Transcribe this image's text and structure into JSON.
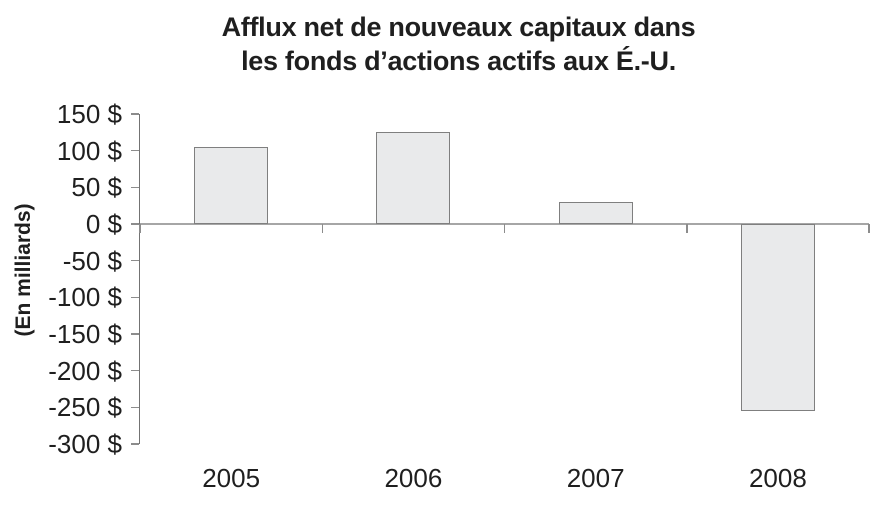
{
  "chart_data": {
    "type": "bar",
    "title": "Afflux net de nouveaux capitaux dans les fonds d’actions actifs aux É.-U.",
    "title_lines": [
      "Afflux net de nouveaux capitaux dans",
      "les fonds d’actions actifs aux É.-U."
    ],
    "ylabel": "(En milliards)",
    "xlabel": "",
    "categories": [
      "2005",
      "2006",
      "2007",
      "2008"
    ],
    "values": [
      105,
      125,
      30,
      -255
    ],
    "unit": "$ billions",
    "ylim": [
      -300,
      150
    ],
    "ytick_step": 50,
    "yticks": [
      {
        "value": 150,
        "label": "150 $"
      },
      {
        "value": 100,
        "label": "100 $"
      },
      {
        "value": 50,
        "label": "50 $"
      },
      {
        "value": 0,
        "label": "0 $"
      },
      {
        "value": -50,
        "label": "-50 $"
      },
      {
        "value": -100,
        "label": "-100 $"
      },
      {
        "value": -150,
        "label": "-150 $"
      },
      {
        "value": -200,
        "label": "-200 $"
      },
      {
        "value": -250,
        "label": "-250 $"
      },
      {
        "value": -300,
        "label": "-300 $"
      }
    ],
    "legend": null,
    "grid": "none",
    "colors": {
      "background": "#ffffff",
      "bar_fill": "#e9eaeb",
      "bar_border": "#7f7f7f",
      "axis_line": "#737373",
      "tick_mark": "#8c8c8c",
      "zero_line": "#a6a6a6",
      "text": "#1f1f1f"
    }
  }
}
